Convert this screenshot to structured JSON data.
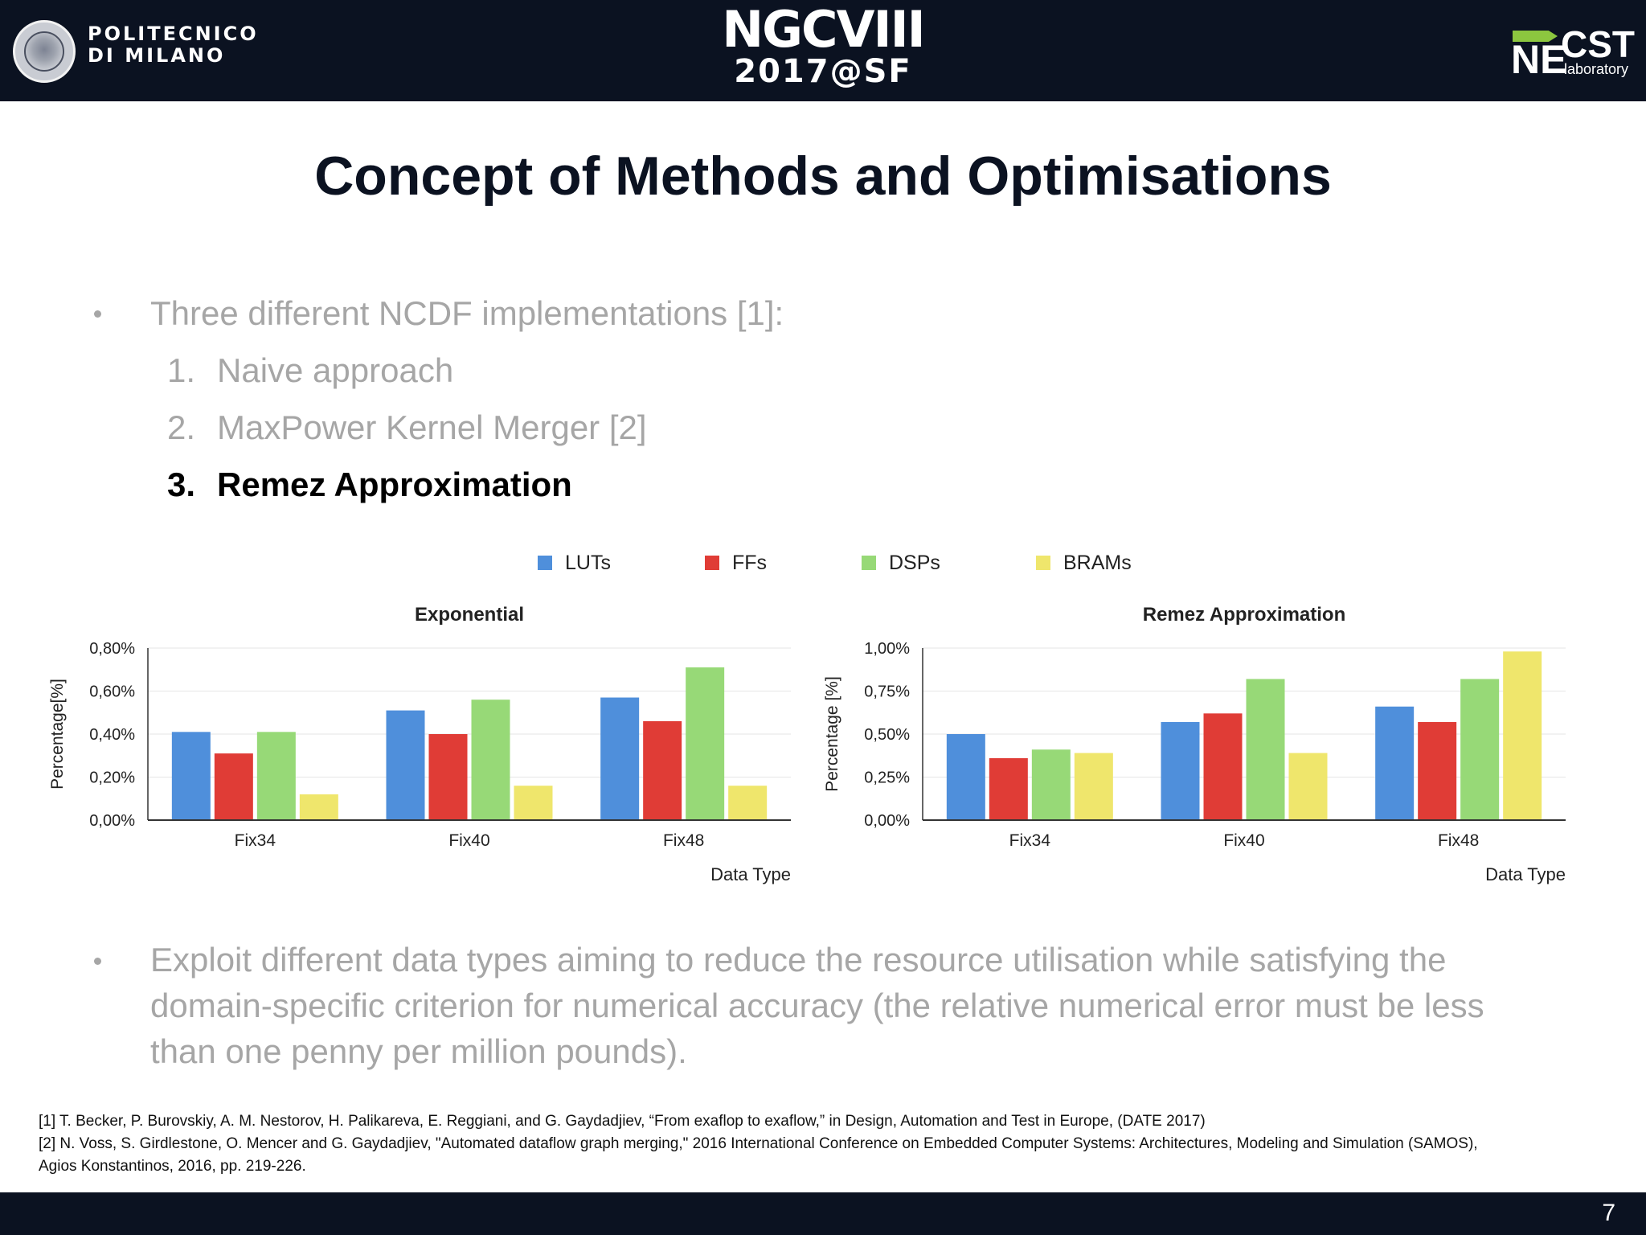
{
  "header": {
    "university_line1": "POLITECNICO",
    "university_line2": "DI MILANO",
    "conference_name": "NGCVIII",
    "conference_year": "2017@SF",
    "lab_logo_ne": "NE",
    "lab_logo_cst": "CST",
    "lab_logo_sub": "laboratory"
  },
  "slide": {
    "title": "Concept of Methods and Optimisations",
    "bullet1": "Three different NCDF implementations [1]:",
    "items": [
      {
        "num": "1.",
        "text": "Naive approach",
        "active": false
      },
      {
        "num": "2.",
        "text": "MaxPower Kernel Merger [2]",
        "active": false
      },
      {
        "num": "3.",
        "text": "Remez Approximation",
        "active": true
      }
    ],
    "bullet2": "Exploit different data types aiming to reduce the resource utilisation while satisfying the domain-specific criterion for numerical accuracy (the relative numerical error must be less than one penny per million pounds).",
    "references": [
      "[1] T. Becker, P. Burovskiy, A. M. Nestorov, H. Palikareva, E. Reggiani, and G. Gaydadjiev, “From exaflop to exaflow,” in Design, Automation and Test in Europe, (DATE 2017)",
      "[2] N. Voss, S. Girdlestone, O. Mencer and G. Gaydadjiev, \"Automated dataflow graph merging,\" 2016 International Conference on Embedded Computer Systems: Architectures, Modeling and Simulation (SAMOS),",
      "Agios Konstantinos, 2016, pp. 219-226."
    ],
    "page_number": "7"
  },
  "legend": [
    {
      "label": "LUTs",
      "color": "#4f8fdb"
    },
    {
      "label": "FFs",
      "color": "#e03c36"
    },
    {
      "label": "DSPs",
      "color": "#97d977"
    },
    {
      "label": "BRAMs",
      "color": "#efe66c"
    }
  ],
  "colors": {
    "header_bg": "#0b1221",
    "text_gray": "#a6a6a6",
    "accent_green": "#8cc63f"
  },
  "chart_data": [
    {
      "type": "bar",
      "title": "Exponential",
      "xlabel": "Data Type",
      "ylabel": "Percentage[%]",
      "categories": [
        "Fix34",
        "Fix40",
        "Fix48"
      ],
      "ylim": [
        0,
        0.8
      ],
      "ytick_values": [
        0,
        0.2,
        0.4,
        0.6,
        0.8
      ],
      "yticks": [
        "0,00%",
        "0,20%",
        "0,40%",
        "0,60%",
        "0,80%"
      ],
      "grid": true,
      "legend_position": "top",
      "series": [
        {
          "name": "LUTs",
          "values": [
            0.41,
            0.51,
            0.57
          ]
        },
        {
          "name": "FFs",
          "values": [
            0.31,
            0.4,
            0.46
          ]
        },
        {
          "name": "DSPs",
          "values": [
            0.41,
            0.56,
            0.71
          ]
        },
        {
          "name": "BRAMs",
          "values": [
            0.12,
            0.16,
            0.16
          ]
        }
      ]
    },
    {
      "type": "bar",
      "title": "Remez Approximation",
      "xlabel": "Data Type",
      "ylabel": "Percentage [%]",
      "categories": [
        "Fix34",
        "Fix40",
        "Fix48"
      ],
      "ylim": [
        0,
        1.0
      ],
      "ytick_values": [
        0,
        0.25,
        0.5,
        0.75,
        1.0
      ],
      "yticks": [
        "0,00%",
        "0,25%",
        "0,50%",
        "0,75%",
        "1,00%"
      ],
      "grid": true,
      "legend_position": "top",
      "series": [
        {
          "name": "LUTs",
          "values": [
            0.5,
            0.57,
            0.66
          ]
        },
        {
          "name": "FFs",
          "values": [
            0.36,
            0.62,
            0.57
          ]
        },
        {
          "name": "DSPs",
          "values": [
            0.41,
            0.82,
            0.82
          ]
        },
        {
          "name": "BRAMs",
          "values": [
            0.39,
            0.39,
            0.98
          ]
        }
      ]
    }
  ]
}
